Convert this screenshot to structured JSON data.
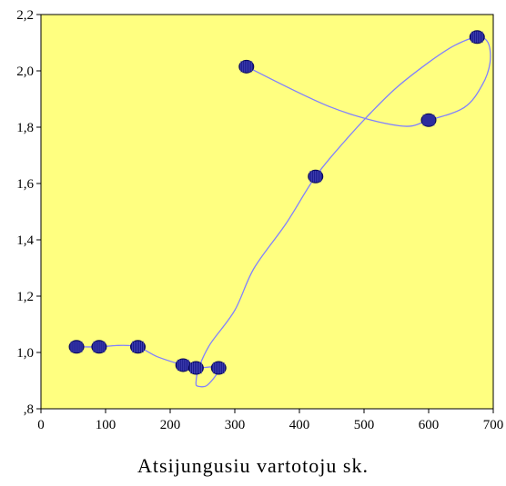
{
  "chart_data": {
    "type": "scatter",
    "xlabel": "Atsijungusiu vartotoju sk.",
    "xlim": [
      0,
      700
    ],
    "ylim": [
      0.8,
      2.2
    ],
    "x_ticks": [
      0,
      100,
      200,
      300,
      400,
      500,
      600,
      700
    ],
    "x_tick_labels": [
      "0",
      "100",
      "200",
      "300",
      "400",
      "500",
      "600",
      "700"
    ],
    "y_ticks": [
      0.8,
      1.0,
      1.2,
      1.4,
      1.6,
      1.8,
      2.0,
      2.2
    ],
    "y_tick_labels": [
      ",8",
      "1,0",
      "1,2",
      "1,4",
      "1,6",
      "1,8",
      "2,0",
      "2,2"
    ],
    "grid": false,
    "plot_background": "#FFFF80",
    "line_color": "#8080FF",
    "marker_color": "#1A1A8C",
    "points": [
      {
        "x": 55,
        "y": 1.02
      },
      {
        "x": 90,
        "y": 1.02
      },
      {
        "x": 150,
        "y": 1.02
      },
      {
        "x": 220,
        "y": 0.955
      },
      {
        "x": 240,
        "y": 0.945
      },
      {
        "x": 275,
        "y": 0.945
      },
      {
        "x": 425,
        "y": 1.625
      },
      {
        "x": 675,
        "y": 2.12
      },
      {
        "x": 600,
        "y": 1.825
      },
      {
        "x": 318,
        "y": 2.015
      }
    ],
    "curve": [
      [
        55,
        1.02
      ],
      [
        90,
        1.02
      ],
      [
        120,
        1.025
      ],
      [
        150,
        1.02
      ],
      [
        180,
        0.985
      ],
      [
        220,
        0.955
      ],
      [
        240,
        0.945
      ],
      [
        275,
        0.945
      ],
      [
        258,
        0.885
      ],
      [
        243,
        0.88
      ],
      [
        240,
        0.895
      ],
      [
        245,
        0.95
      ],
      [
        262,
        1.03
      ],
      [
        300,
        1.15
      ],
      [
        330,
        1.3
      ],
      [
        380,
        1.46
      ],
      [
        425,
        1.625
      ],
      [
        470,
        1.75
      ],
      [
        510,
        1.85
      ],
      [
        550,
        1.94
      ],
      [
        600,
        2.03
      ],
      [
        640,
        2.09
      ],
      [
        675,
        2.12
      ],
      [
        692,
        2.1
      ],
      [
        695,
        2.03
      ],
      [
        683,
        1.95
      ],
      [
        655,
        1.87
      ],
      [
        600,
        1.825
      ],
      [
        555,
        1.805
      ],
      [
        450,
        1.87
      ],
      [
        318,
        2.015
      ]
    ]
  }
}
